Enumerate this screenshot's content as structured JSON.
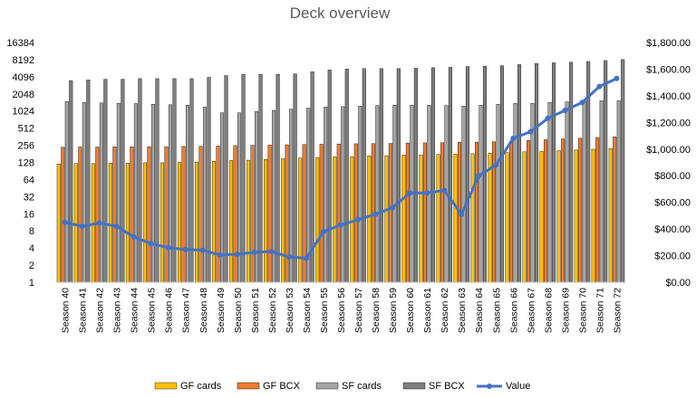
{
  "chart_data": {
    "type": "bar",
    "title": "Deck overview",
    "categories": [
      "Season 40",
      "Season 41",
      "Season 42",
      "Season 43",
      "Season 44",
      "Season 45",
      "Season 46",
      "Season 47",
      "Season 48",
      "Season 49",
      "Season 50",
      "Season 51",
      "Season 52",
      "Season 53",
      "Season 54",
      "Season 55",
      "Season 56",
      "Season 57",
      "Season 58",
      "Season 59",
      "Season 60",
      "Season 61",
      "Season 62",
      "Season 63",
      "Season 64",
      "Season 65",
      "Season 66",
      "Season 67",
      "Season 68",
      "Season 69",
      "Season 70",
      "Season 71",
      "Season 72"
    ],
    "y_left": {
      "scale": "log2",
      "min": 1,
      "max": 16384,
      "ticks": [
        "1",
        "2",
        "4",
        "8",
        "16",
        "32",
        "64",
        "128",
        "256",
        "512",
        "1024",
        "2048",
        "4096",
        "8192",
        "16384"
      ]
    },
    "y_right": {
      "min": 0,
      "max": 1800,
      "ticks": [
        "$0.00",
        "$200.00",
        "$400.00",
        "$600.00",
        "$800.00",
        "$1,000.00",
        "$1,200.00",
        "$1,400.00",
        "$1,600.00",
        "$1,800.00"
      ]
    },
    "series": [
      {
        "name": "GF cards",
        "axis": "left",
        "kind": "bar",
        "color": "#FFC000",
        "values": [
          120,
          122,
          122,
          124,
          124,
          126,
          126,
          128,
          130,
          134,
          138,
          140,
          144,
          148,
          152,
          156,
          160,
          162,
          166,
          168,
          172,
          174,
          176,
          180,
          182,
          186,
          190,
          196,
          200,
          206,
          212,
          218,
          224
        ]
      },
      {
        "name": "GF BCX",
        "axis": "left",
        "kind": "bar",
        "color": "#ED7D31",
        "values": [
          236,
          238,
          238,
          240,
          240,
          242,
          242,
          244,
          246,
          248,
          252,
          256,
          258,
          262,
          264,
          266,
          270,
          272,
          274,
          276,
          280,
          282,
          284,
          288,
          290,
          294,
          300,
          310,
          320,
          330,
          340,
          350,
          360
        ]
      },
      {
        "name": "SF cards",
        "axis": "left",
        "kind": "bar",
        "color": "#A5A5A5",
        "values": [
          1500,
          1450,
          1420,
          1400,
          1380,
          1350,
          1320,
          1300,
          1200,
          950,
          950,
          1000,
          1050,
          1100,
          1150,
          1200,
          1220,
          1250,
          1280,
          1300,
          1300,
          1300,
          1280,
          1250,
          1300,
          1350,
          1400,
          1400,
          1450,
          1480,
          1500,
          1550,
          1550
        ]
      },
      {
        "name": "SF BCX",
        "axis": "left",
        "kind": "bar",
        "color": "#7F7F7F",
        "values": [
          3500,
          3600,
          3700,
          3700,
          3800,
          3800,
          3800,
          3800,
          4000,
          4300,
          4500,
          4500,
          4500,
          4600,
          5000,
          5400,
          5600,
          5700,
          5700,
          5700,
          5800,
          5900,
          6000,
          6200,
          6300,
          6400,
          6700,
          7000,
          7200,
          7400,
          7600,
          7900,
          8200
        ]
      },
      {
        "name": "Value",
        "axis": "right",
        "kind": "line",
        "color": "#4472C4",
        "values": [
          450,
          420,
          445,
          420,
          340,
          290,
          260,
          245,
          240,
          205,
          210,
          225,
          230,
          190,
          180,
          380,
          430,
          470,
          510,
          560,
          670,
          670,
          690,
          510,
          800,
          880,
          1080,
          1130,
          1230,
          1290,
          1350,
          1470,
          1530
        ]
      }
    ],
    "legend_position": "bottom",
    "grid": false
  }
}
